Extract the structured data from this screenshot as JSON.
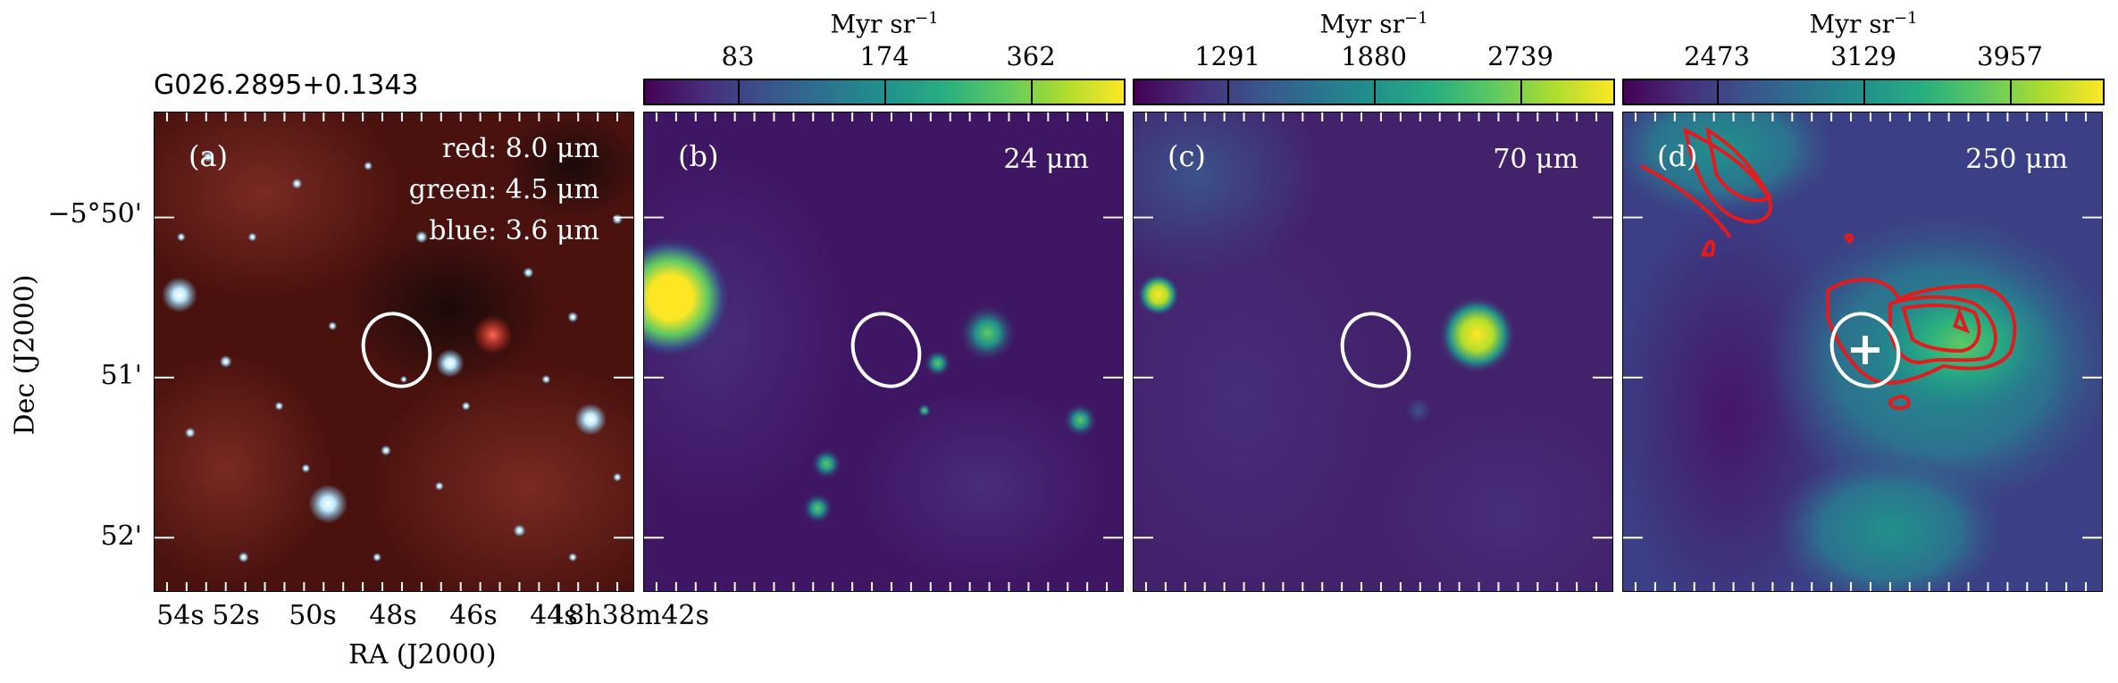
{
  "source_title": "G026.2895+0.1343",
  "ra_label": "RA (J2000)",
  "dec_label": "Dec (J2000)",
  "dec_ticks": [
    "−5°50'",
    "51'",
    "52'"
  ],
  "ra_ticks": [
    "54s",
    "52s",
    "50s",
    "48s",
    "46s",
    "44s",
    "18h38m42s"
  ],
  "panels": [
    {
      "id": "a",
      "label": "(a)",
      "lines": [
        "red: 8.0 μm",
        "green: 4.5 μm",
        "blue: 3.6 μm"
      ]
    },
    {
      "id": "b",
      "label": "(b)",
      "wavelength": "24 μm",
      "colorbar": {
        "unit": "Myr sr",
        "unit_exp": "−1",
        "ticks": [
          "83",
          "174",
          "362"
        ]
      }
    },
    {
      "id": "c",
      "label": "(c)",
      "wavelength": "70 μm",
      "colorbar": {
        "unit": "Myr sr",
        "unit_exp": "−1",
        "ticks": [
          "1291",
          "1880",
          "2739"
        ]
      }
    },
    {
      "id": "d",
      "label": "(d)",
      "wavelength": "250 μm",
      "colorbar": {
        "unit": "Myr sr",
        "unit_exp": "−1",
        "ticks": [
          "2473",
          "3129",
          "3957"
        ]
      }
    }
  ],
  "colors": {
    "contour": "#e41a1c",
    "ellipse": "#ffffff",
    "cmap_low": "#440154",
    "cmap_high": "#fde725"
  }
}
